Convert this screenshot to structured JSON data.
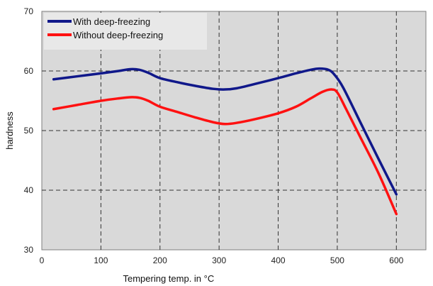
{
  "chart_data": {
    "type": "line",
    "title": "",
    "xlabel": "Tempering temp. in °C",
    "ylabel": "hardness",
    "xlim": [
      0,
      650
    ],
    "ylim": [
      30,
      70
    ],
    "xticks": [
      0,
      100,
      200,
      300,
      400,
      500,
      600
    ],
    "yticks": [
      30,
      40,
      50,
      60,
      70
    ],
    "grid": true,
    "grid_style": "dashed",
    "legend_position": "top-left",
    "plot_background": "#d9d9d9",
    "series": [
      {
        "name": "With deep-freezing",
        "color": "#10188a",
        "x": [
          20,
          60,
          100,
          130,
          150,
          165,
          180,
          200,
          230,
          260,
          290,
          310,
          330,
          360,
          400,
          430,
          455,
          470,
          485,
          495,
          510,
          540,
          570,
          600
        ],
        "y": [
          58.6,
          59.1,
          59.6,
          60.0,
          60.3,
          60.2,
          59.7,
          58.8,
          58.1,
          57.5,
          57.0,
          56.9,
          57.1,
          57.8,
          58.8,
          59.6,
          60.2,
          60.4,
          60.2,
          59.4,
          57.2,
          51.2,
          45.2,
          39.3
        ]
      },
      {
        "name": "Without deep-freezing",
        "color": "#ff1111",
        "x": [
          20,
          60,
          100,
          130,
          150,
          165,
          180,
          200,
          230,
          260,
          290,
          310,
          330,
          360,
          400,
          430,
          455,
          475,
          490,
          500,
          515,
          540,
          570,
          600
        ],
        "y": [
          53.6,
          54.3,
          55.0,
          55.4,
          55.6,
          55.5,
          55.0,
          54.0,
          53.1,
          52.2,
          51.4,
          51.1,
          51.3,
          51.9,
          52.9,
          54.0,
          55.4,
          56.5,
          56.9,
          56.4,
          53.6,
          48.7,
          42.8,
          36.0
        ]
      }
    ]
  }
}
